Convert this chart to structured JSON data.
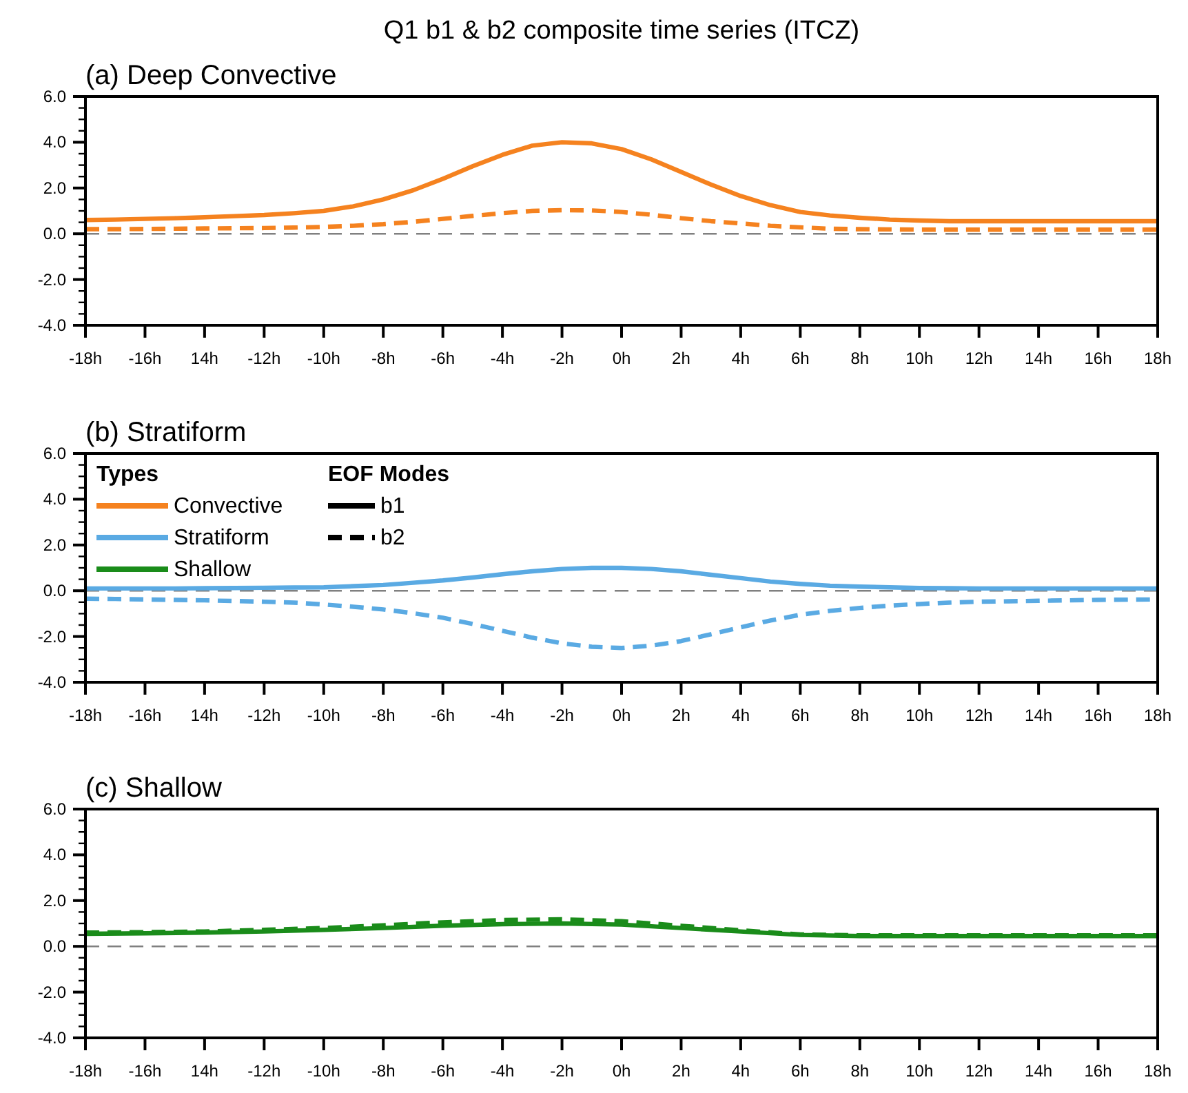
{
  "chart_data": [
    {
      "type": "line",
      "title": "Q1 b1 & b2 composite time series (ITCZ)",
      "subtitle": "(a) Deep Convective",
      "x": [
        -18,
        -17,
        -16,
        -15,
        -14,
        -13,
        -12,
        -11,
        -10,
        -9,
        -8,
        -7,
        -6,
        -5,
        -4,
        -3,
        -2,
        -1,
        0,
        1,
        2,
        3,
        4,
        5,
        6,
        7,
        8,
        9,
        10,
        11,
        12,
        13,
        14,
        15,
        16,
        17,
        18
      ],
      "series": [
        {
          "color": "#f5821f",
          "line_style": "solid",
          "values": [
            0.6,
            0.62,
            0.65,
            0.68,
            0.72,
            0.77,
            0.82,
            0.9,
            1.0,
            1.2,
            1.5,
            1.9,
            2.4,
            2.95,
            3.45,
            3.85,
            4.0,
            3.95,
            3.7,
            3.25,
            2.7,
            2.15,
            1.65,
            1.25,
            0.95,
            0.8,
            0.7,
            0.62,
            0.58,
            0.55,
            0.55,
            0.55,
            0.55,
            0.55,
            0.55,
            0.55,
            0.55
          ]
        },
        {
          "color": "#f5821f",
          "line_style": "dashed",
          "values": [
            0.2,
            0.2,
            0.21,
            0.22,
            0.23,
            0.24,
            0.25,
            0.27,
            0.3,
            0.35,
            0.42,
            0.52,
            0.65,
            0.78,
            0.9,
            1.0,
            1.03,
            1.02,
            0.95,
            0.83,
            0.68,
            0.55,
            0.45,
            0.35,
            0.28,
            0.22,
            0.2,
            0.19,
            0.18,
            0.18,
            0.18,
            0.18,
            0.18,
            0.18,
            0.18,
            0.18,
            0.18
          ]
        }
      ],
      "xlim": [
        -18,
        18
      ],
      "xticks": [
        {
          "value": -18,
          "label": "-18h"
        },
        {
          "value": -16,
          "label": "-16h"
        },
        {
          "value": -14,
          "label": "14h"
        },
        {
          "value": -12,
          "label": "-12h"
        },
        {
          "value": -10,
          "label": "-10h"
        },
        {
          "value": -8,
          "label": "-8h"
        },
        {
          "value": -6,
          "label": "-6h"
        },
        {
          "value": -4,
          "label": "-4h"
        },
        {
          "value": -2,
          "label": "-2h"
        },
        {
          "value": 0,
          "label": "0h"
        },
        {
          "value": 2,
          "label": "2h"
        },
        {
          "value": 4,
          "label": "4h"
        },
        {
          "value": 6,
          "label": "6h"
        },
        {
          "value": 8,
          "label": "8h"
        },
        {
          "value": 10,
          "label": "10h"
        },
        {
          "value": 12,
          "label": "12h"
        },
        {
          "value": 14,
          "label": "14h"
        },
        {
          "value": 16,
          "label": "16h"
        },
        {
          "value": 18,
          "label": "18h"
        }
      ],
      "ylim": [
        -4,
        6
      ],
      "yticks": [
        {
          "value": -4,
          "label": "-4.0"
        },
        {
          "value": -2,
          "label": "-2.0"
        },
        {
          "value": 0,
          "label": "0.0"
        },
        {
          "value": 2,
          "label": "2.0"
        },
        {
          "value": 4,
          "label": "4.0"
        },
        {
          "value": 6,
          "label": "6.0"
        }
      ],
      "ref_lines": [
        {
          "axis": "y",
          "value": 0,
          "color": "#808080",
          "line_style": "dashed"
        }
      ],
      "grid": false
    },
    {
      "type": "line",
      "title": "(b) Stratiform",
      "x": [
        -18,
        -17,
        -16,
        -15,
        -14,
        -13,
        -12,
        -11,
        -10,
        -9,
        -8,
        -7,
        -6,
        -5,
        -4,
        -3,
        -2,
        -1,
        0,
        1,
        2,
        3,
        4,
        5,
        6,
        7,
        8,
        9,
        10,
        11,
        12,
        13,
        14,
        15,
        16,
        17,
        18
      ],
      "series": [
        {
          "color": "#5aaae3",
          "line_style": "solid",
          "values": [
            0.1,
            0.1,
            0.1,
            0.1,
            0.11,
            0.12,
            0.13,
            0.14,
            0.15,
            0.2,
            0.25,
            0.35,
            0.45,
            0.58,
            0.72,
            0.85,
            0.95,
            1.0,
            1.0,
            0.95,
            0.85,
            0.7,
            0.55,
            0.4,
            0.3,
            0.22,
            0.18,
            0.15,
            0.12,
            0.11,
            0.1,
            0.1,
            0.1,
            0.1,
            0.1,
            0.1,
            0.1
          ]
        },
        {
          "color": "#5aaae3",
          "line_style": "dashed",
          "values": [
            -0.35,
            -0.36,
            -0.38,
            -0.4,
            -0.42,
            -0.45,
            -0.48,
            -0.52,
            -0.6,
            -0.7,
            -0.82,
            -0.98,
            -1.18,
            -1.45,
            -1.75,
            -2.05,
            -2.3,
            -2.45,
            -2.5,
            -2.4,
            -2.2,
            -1.9,
            -1.6,
            -1.3,
            -1.05,
            -0.88,
            -0.75,
            -0.65,
            -0.58,
            -0.52,
            -0.48,
            -0.46,
            -0.44,
            -0.42,
            -0.4,
            -0.39,
            -0.38
          ]
        }
      ],
      "xlim": [
        -18,
        18
      ],
      "xticks": [
        {
          "value": -18,
          "label": "-18h"
        },
        {
          "value": -16,
          "label": "-16h"
        },
        {
          "value": -14,
          "label": "14h"
        },
        {
          "value": -12,
          "label": "-12h"
        },
        {
          "value": -10,
          "label": "-10h"
        },
        {
          "value": -8,
          "label": "-8h"
        },
        {
          "value": -6,
          "label": "-6h"
        },
        {
          "value": -4,
          "label": "-4h"
        },
        {
          "value": -2,
          "label": "-2h"
        },
        {
          "value": 0,
          "label": "0h"
        },
        {
          "value": 2,
          "label": "2h"
        },
        {
          "value": 4,
          "label": "4h"
        },
        {
          "value": 6,
          "label": "6h"
        },
        {
          "value": 8,
          "label": "8h"
        },
        {
          "value": 10,
          "label": "10h"
        },
        {
          "value": 12,
          "label": "12h"
        },
        {
          "value": 14,
          "label": "14h"
        },
        {
          "value": 16,
          "label": "16h"
        },
        {
          "value": 18,
          "label": "18h"
        }
      ],
      "ylim": [
        -4,
        6
      ],
      "yticks": [
        {
          "value": -4,
          "label": "-4.0"
        },
        {
          "value": -2,
          "label": "-2.0"
        },
        {
          "value": 0,
          "label": "0.0"
        },
        {
          "value": 2,
          "label": "2.0"
        },
        {
          "value": 4,
          "label": "4.0"
        },
        {
          "value": 6,
          "label": "6.0"
        }
      ],
      "ref_lines": [
        {
          "axis": "y",
          "value": 0,
          "color": "#808080",
          "line_style": "dashed"
        }
      ],
      "grid": false,
      "annotations": [
        "Types",
        "Convective",
        "Stratiform",
        "Shallow",
        "EOF Modes",
        "b1",
        "b2"
      ]
    },
    {
      "type": "line",
      "title": "(c) Shallow",
      "x": [
        -18,
        -16,
        -14,
        -12,
        -10,
        -8,
        -6,
        -4,
        -2,
        0,
        2,
        4,
        6,
        8,
        10,
        12,
        14,
        16,
        18
      ],
      "series": [
        {
          "color": "#1a8c1a",
          "line_style": "solid",
          "values": [
            0.55,
            0.57,
            0.6,
            0.65,
            0.72,
            0.8,
            0.9,
            0.97,
            1.0,
            0.95,
            0.8,
            0.65,
            0.5,
            0.45,
            0.45,
            0.45,
            0.45,
            0.45,
            0.45
          ]
        },
        {
          "color": "#1a8c1a",
          "line_style": "dashed",
          "values": [
            0.6,
            0.62,
            0.65,
            0.72,
            0.8,
            0.92,
            1.05,
            1.15,
            1.18,
            1.1,
            0.9,
            0.7,
            0.52,
            0.48,
            0.48,
            0.48,
            0.48,
            0.48,
            0.48
          ]
        }
      ],
      "xlim": [
        -18,
        18
      ],
      "xticks": [
        {
          "value": -18,
          "label": "-18h"
        },
        {
          "value": -16,
          "label": "-16h"
        },
        {
          "value": -14,
          "label": "14h"
        },
        {
          "value": -12,
          "label": "-12h"
        },
        {
          "value": -10,
          "label": "-10h"
        },
        {
          "value": -8,
          "label": "-8h"
        },
        {
          "value": -6,
          "label": "-6h"
        },
        {
          "value": -4,
          "label": "-4h"
        },
        {
          "value": -2,
          "label": "-2h"
        },
        {
          "value": 0,
          "label": "0h"
        },
        {
          "value": 2,
          "label": "2h"
        },
        {
          "value": 4,
          "label": "4h"
        },
        {
          "value": 6,
          "label": "6h"
        },
        {
          "value": 8,
          "label": "8h"
        },
        {
          "value": 10,
          "label": "10h"
        },
        {
          "value": 12,
          "label": "12h"
        },
        {
          "value": 14,
          "label": "14h"
        },
        {
          "value": 16,
          "label": "16h"
        },
        {
          "value": 18,
          "label": "18h"
        }
      ],
      "ylim": [
        -4,
        6
      ],
      "yticks": [
        {
          "value": -4,
          "label": "-4.0"
        },
        {
          "value": -2,
          "label": "-2.0"
        },
        {
          "value": 0,
          "label": "0.0"
        },
        {
          "value": 2,
          "label": "2.0"
        },
        {
          "value": 4,
          "label": "4.0"
        },
        {
          "value": 6,
          "label": "6.0"
        }
      ],
      "ref_lines": [
        {
          "axis": "y",
          "value": 0,
          "color": "#808080",
          "line_style": "dashed"
        }
      ],
      "grid": false
    }
  ]
}
